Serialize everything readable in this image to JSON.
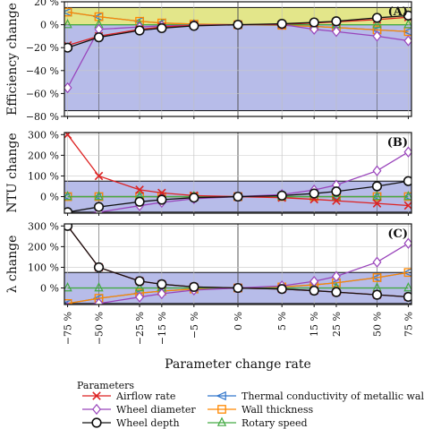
{
  "chart_data": {
    "type": "line",
    "xlabel": "Parameter change rate",
    "x": [
      -75,
      -50,
      -25,
      -15,
      -5,
      0,
      5,
      15,
      25,
      50,
      75
    ],
    "x_tick_labels": [
      "−75 %",
      "−50 %",
      "−25 %",
      "−15 %",
      "−5 %",
      "0 %",
      "5 %",
      "15 %",
      "25 %",
      "50 %",
      "75 %"
    ],
    "legend": {
      "title": "Parameters",
      "entries": [
        {
          "key": "airflow",
          "label": "Airflow rate",
          "color": "#dd2222",
          "marker": "x"
        },
        {
          "key": "diameter",
          "label": "Wheel diameter",
          "color": "#9944bb",
          "marker": "diamond"
        },
        {
          "key": "depth",
          "label": "Wheel depth",
          "color": "#111111",
          "marker": "circle"
        },
        {
          "key": "conductivity",
          "label": "Thermal conductivity of metallic wall",
          "color": "#3377cc",
          "marker": "triangle-left"
        },
        {
          "key": "thickness",
          "label": "Wall thickness",
          "color": "#ff8800",
          "marker": "square"
        },
        {
          "key": "speed",
          "label": "Rotary speed",
          "color": "#44aa44",
          "marker": "triangle-up"
        }
      ]
    },
    "panels": [
      {
        "id": "A",
        "label": "(A)",
        "ylabel": "Efficiency change",
        "ylim": [
          -80,
          20
        ],
        "yticks": [
          -80,
          -60,
          -40,
          -20,
          0,
          20
        ],
        "ytick_labels": [
          "−80 %",
          "−60 %",
          "−40 %",
          "−20 %",
          "0 %",
          "20 %"
        ],
        "bands": [
          {
            "from": 0,
            "to": 15,
            "color": "#e3e68a"
          },
          {
            "from": -75,
            "to": 0,
            "color": "#b7bce9"
          }
        ],
        "series": [
          {
            "key": "airflow",
            "values": [
              -18,
              -10,
              -4,
              -2,
              -0.5,
              0,
              0.4,
              1.5,
              2.5,
              4.5,
              6.5
            ]
          },
          {
            "key": "diameter",
            "values": [
              -55,
              -4,
              -2,
              -1,
              -0.3,
              0,
              0.2,
              -4,
              -6,
              -10,
              -14
            ]
          },
          {
            "key": "depth",
            "values": [
              -20,
              -11,
              -5,
              -3,
              -1,
              0,
              0.8,
              2,
              3,
              6,
              8
            ]
          },
          {
            "key": "conductivity",
            "values": [
              11,
              7,
              3,
              1.5,
              0.5,
              0,
              -0.5,
              -1.5,
              -2.5,
              -4.5,
              -6
            ]
          },
          {
            "key": "thickness",
            "values": [
              11,
              7,
              3,
              1.5,
              0.5,
              0,
              -0.5,
              -1.5,
              -2.5,
              -4.5,
              -6
            ]
          },
          {
            "key": "speed",
            "values": [
              0,
              0,
              0,
              0,
              0,
              0,
              0,
              0,
              0,
              0,
              0
            ]
          }
        ]
      },
      {
        "id": "B",
        "label": "(B)",
        "ylabel": "NTU change",
        "ylim": [
          -80,
          310
        ],
        "yticks": [
          0,
          100,
          200,
          300
        ],
        "ytick_labels": [
          "0 %",
          "100 %",
          "200 %",
          "300 %"
        ],
        "bands": [
          {
            "from": -75,
            "to": 75,
            "color": "#b7bce9"
          }
        ],
        "series": [
          {
            "key": "airflow",
            "values": [
              300,
              100,
              33,
              18,
              5,
              0,
              -5,
              -13,
              -20,
              -33,
              -43
            ]
          },
          {
            "key": "diameter",
            "values": [
              -94,
              -75,
              -44,
              -28,
              -10,
              0,
              10,
              32,
              56,
              125,
              216
            ]
          },
          {
            "key": "depth",
            "values": [
              -75,
              -50,
              -25,
              -15,
              -5,
              0,
              5,
              15,
              25,
              50,
              75
            ]
          },
          {
            "key": "conductivity",
            "values": [
              0,
              0,
              0,
              0,
              0,
              0,
              0,
              0,
              0,
              0,
              0
            ]
          },
          {
            "key": "thickness",
            "values": [
              0,
              0,
              0,
              0,
              0,
              0,
              0,
              0,
              0,
              0,
              0
            ]
          },
          {
            "key": "speed",
            "values": [
              0,
              0,
              0,
              0,
              0,
              0,
              0,
              0,
              0,
              0,
              0
            ]
          }
        ]
      },
      {
        "id": "C",
        "label": "(C)",
        "ylabel": "λ change",
        "ylim": [
          -80,
          310
        ],
        "yticks": [
          0,
          100,
          200,
          300
        ],
        "ytick_labels": [
          "0 %",
          "100 %",
          "200 %",
          "300 %"
        ],
        "bands": [
          {
            "from": -75,
            "to": 75,
            "color": "#b7bce9"
          }
        ],
        "series": [
          {
            "key": "airflow",
            "values": [
              300,
              100,
              33,
              18,
              5,
              0,
              -5,
              -13,
              -20,
              -33,
              -43
            ]
          },
          {
            "key": "diameter",
            "values": [
              -94,
              -75,
              -44,
              -28,
              -10,
              0,
              10,
              32,
              56,
              125,
              216
            ]
          },
          {
            "key": "depth",
            "values": [
              300,
              100,
              33,
              18,
              5,
              0,
              -5,
              -13,
              -20,
              -33,
              -43
            ]
          },
          {
            "key": "conductivity",
            "values": [
              -75,
              -50,
              -25,
              -15,
              -5,
              0,
              5,
              15,
              25,
              50,
              75
            ]
          },
          {
            "key": "thickness",
            "values": [
              -75,
              -50,
              -25,
              -15,
              -5,
              0,
              5,
              15,
              25,
              50,
              75
            ]
          },
          {
            "key": "speed",
            "values": [
              0,
              0,
              0,
              0,
              0,
              0,
              0,
              0,
              0,
              0,
              0
            ]
          }
        ]
      }
    ]
  }
}
